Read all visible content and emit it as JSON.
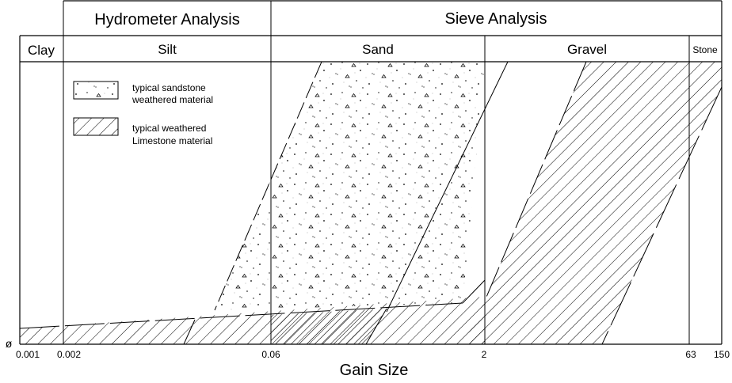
{
  "header": {
    "top_left": "Hydrometer Analysis",
    "top_right": "Sieve Analysis"
  },
  "columns": {
    "clay": "Clay",
    "silt": "Silt",
    "sand": "Sand",
    "gravel": "Gravel",
    "stone": "Stone"
  },
  "legend": {
    "sandstone_line1": "typical sandstone",
    "sandstone_line2": "weathered material",
    "limestone_line1": "typical weathered",
    "limestone_line2": "Limestone material"
  },
  "x_axis": {
    "ticks": [
      "0.001",
      "0.002",
      "0.06",
      "2",
      "63",
      "150"
    ],
    "title": "Gain Size"
  },
  "y_axis": {
    "origin_label": "ø"
  },
  "colors": {
    "line": "#000000",
    "background": "#ffffff"
  }
}
